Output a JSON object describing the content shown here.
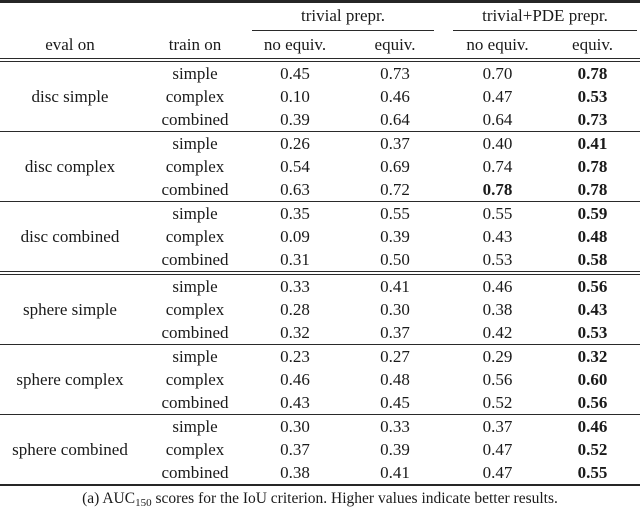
{
  "table": {
    "span_headers": [
      {
        "label": "trivial prepr."
      },
      {
        "label": "trivial+PDE prepr."
      }
    ],
    "column_headers": {
      "eval_on": "eval on",
      "train_on": "train on",
      "metric_cols": [
        "no equiv.",
        "equiv.",
        "no equiv.",
        "equiv."
      ]
    },
    "groups": [
      {
        "eval_on": "disc simple",
        "rule_after": "single",
        "rows": [
          {
            "train_on": "simple",
            "values": [
              "0.45",
              "0.73",
              "0.70",
              "0.78"
            ],
            "bold": [
              false,
              false,
              false,
              true
            ]
          },
          {
            "train_on": "complex",
            "values": [
              "0.10",
              "0.46",
              "0.47",
              "0.53"
            ],
            "bold": [
              false,
              false,
              false,
              true
            ]
          },
          {
            "train_on": "combined",
            "values": [
              "0.39",
              "0.64",
              "0.64",
              "0.73"
            ],
            "bold": [
              false,
              false,
              false,
              true
            ]
          }
        ]
      },
      {
        "eval_on": "disc complex",
        "rule_after": "single",
        "rows": [
          {
            "train_on": "simple",
            "values": [
              "0.26",
              "0.37",
              "0.40",
              "0.41"
            ],
            "bold": [
              false,
              false,
              false,
              true
            ]
          },
          {
            "train_on": "complex",
            "values": [
              "0.54",
              "0.69",
              "0.74",
              "0.78"
            ],
            "bold": [
              false,
              false,
              false,
              true
            ]
          },
          {
            "train_on": "combined",
            "values": [
              "0.63",
              "0.72",
              "0.78",
              "0.78"
            ],
            "bold": [
              false,
              false,
              true,
              true
            ]
          }
        ]
      },
      {
        "eval_on": "disc combined",
        "rule_after": "double",
        "rows": [
          {
            "train_on": "simple",
            "values": [
              "0.35",
              "0.55",
              "0.55",
              "0.59"
            ],
            "bold": [
              false,
              false,
              false,
              true
            ]
          },
          {
            "train_on": "complex",
            "values": [
              "0.09",
              "0.39",
              "0.43",
              "0.48"
            ],
            "bold": [
              false,
              false,
              false,
              true
            ]
          },
          {
            "train_on": "combined",
            "values": [
              "0.31",
              "0.50",
              "0.53",
              "0.58"
            ],
            "bold": [
              false,
              false,
              false,
              true
            ]
          }
        ]
      },
      {
        "eval_on": "sphere simple",
        "rule_after": "single",
        "rows": [
          {
            "train_on": "simple",
            "values": [
              "0.33",
              "0.41",
              "0.46",
              "0.56"
            ],
            "bold": [
              false,
              false,
              false,
              true
            ]
          },
          {
            "train_on": "complex",
            "values": [
              "0.28",
              "0.30",
              "0.38",
              "0.43"
            ],
            "bold": [
              false,
              false,
              false,
              true
            ]
          },
          {
            "train_on": "combined",
            "values": [
              "0.32",
              "0.37",
              "0.42",
              "0.53"
            ],
            "bold": [
              false,
              false,
              false,
              true
            ]
          }
        ]
      },
      {
        "eval_on": "sphere complex",
        "rule_after": "single",
        "rows": [
          {
            "train_on": "simple",
            "values": [
              "0.23",
              "0.27",
              "0.29",
              "0.32"
            ],
            "bold": [
              false,
              false,
              false,
              true
            ]
          },
          {
            "train_on": "complex",
            "values": [
              "0.46",
              "0.48",
              "0.56",
              "0.60"
            ],
            "bold": [
              false,
              false,
              false,
              true
            ]
          },
          {
            "train_on": "combined",
            "values": [
              "0.43",
              "0.45",
              "0.52",
              "0.56"
            ],
            "bold": [
              false,
              false,
              false,
              true
            ]
          }
        ]
      },
      {
        "eval_on": "sphere combined",
        "rule_after": "none",
        "rows": [
          {
            "train_on": "simple",
            "values": [
              "0.30",
              "0.33",
              "0.37",
              "0.46"
            ],
            "bold": [
              false,
              false,
              false,
              true
            ]
          },
          {
            "train_on": "complex",
            "values": [
              "0.37",
              "0.39",
              "0.47",
              "0.52"
            ],
            "bold": [
              false,
              false,
              false,
              true
            ]
          },
          {
            "train_on": "combined",
            "values": [
              "0.38",
              "0.41",
              "0.47",
              "0.55"
            ],
            "bold": [
              false,
              false,
              false,
              true
            ]
          }
        ]
      }
    ]
  },
  "caption": {
    "label": "(a)",
    "metric": "AUC",
    "metric_subscript": "150",
    "text": "scores for the IoU criterion. Higher values indicate better results."
  },
  "colors": {
    "text": "#1a1a1a",
    "rule": "#2a2a2a",
    "background": "#ffffff"
  }
}
